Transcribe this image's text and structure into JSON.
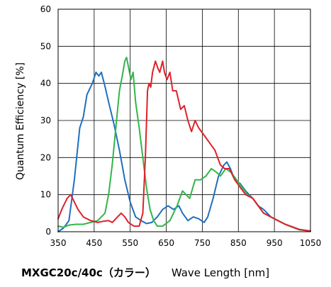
{
  "chart_data": {
    "type": "line",
    "ylabel": "Quantum Efficiency [%]",
    "xlabel": "Wave Length [nm]",
    "model_label": "MXGC20c/40c（カラー）",
    "xlim": [
      350,
      1050
    ],
    "ylim": [
      0,
      60
    ],
    "x_ticks": [
      350,
      450,
      550,
      650,
      750,
      850,
      950,
      1050
    ],
    "y_ticks": [
      0,
      10,
      20,
      30,
      40,
      50,
      60
    ],
    "grid": true,
    "series": [
      {
        "color": "#1f6fbf",
        "points": [
          [
            350,
            0
          ],
          [
            365,
            1
          ],
          [
            380,
            3
          ],
          [
            395,
            14
          ],
          [
            410,
            28
          ],
          [
            420,
            31
          ],
          [
            430,
            37
          ],
          [
            445,
            40
          ],
          [
            455,
            43
          ],
          [
            463,
            42
          ],
          [
            470,
            43
          ],
          [
            478,
            40
          ],
          [
            490,
            35
          ],
          [
            505,
            29
          ],
          [
            520,
            22
          ],
          [
            535,
            14
          ],
          [
            550,
            8
          ],
          [
            565,
            4
          ],
          [
            580,
            3
          ],
          [
            595,
            2.2
          ],
          [
            610,
            2.5
          ],
          [
            625,
            4
          ],
          [
            640,
            6
          ],
          [
            655,
            7
          ],
          [
            670,
            6
          ],
          [
            685,
            7
          ],
          [
            695,
            5
          ],
          [
            710,
            3
          ],
          [
            725,
            4
          ],
          [
            740,
            3.5
          ],
          [
            755,
            2.5
          ],
          [
            765,
            4
          ],
          [
            780,
            9
          ],
          [
            795,
            15
          ],
          [
            810,
            18
          ],
          [
            818,
            18.8
          ],
          [
            828,
            17
          ],
          [
            840,
            14
          ],
          [
            855,
            13
          ],
          [
            870,
            11
          ],
          [
            890,
            9
          ],
          [
            905,
            7
          ],
          [
            920,
            6
          ],
          [
            940,
            4
          ],
          [
            960,
            3
          ],
          [
            980,
            2
          ],
          [
            1000,
            1.3
          ],
          [
            1020,
            0.6
          ],
          [
            1050,
            0.2
          ]
        ]
      },
      {
        "color": "#33b54a",
        "points": [
          [
            350,
            1.5
          ],
          [
            365,
            1.2
          ],
          [
            380,
            1.8
          ],
          [
            400,
            2
          ],
          [
            420,
            2
          ],
          [
            440,
            2.5
          ],
          [
            460,
            3
          ],
          [
            480,
            5
          ],
          [
            490,
            10
          ],
          [
            500,
            18
          ],
          [
            510,
            28
          ],
          [
            520,
            38
          ],
          [
            528,
            42
          ],
          [
            535,
            46
          ],
          [
            540,
            47
          ],
          [
            546,
            44
          ],
          [
            552,
            41
          ],
          [
            558,
            43
          ],
          [
            565,
            35
          ],
          [
            575,
            28
          ],
          [
            585,
            20
          ],
          [
            595,
            12
          ],
          [
            605,
            6
          ],
          [
            615,
            3
          ],
          [
            625,
            1.5
          ],
          [
            640,
            1.5
          ],
          [
            660,
            3
          ],
          [
            680,
            7
          ],
          [
            695,
            11
          ],
          [
            705,
            10
          ],
          [
            715,
            9
          ],
          [
            730,
            14
          ],
          [
            745,
            14
          ],
          [
            760,
            15
          ],
          [
            775,
            17
          ],
          [
            790,
            16
          ],
          [
            800,
            15
          ],
          [
            815,
            17
          ],
          [
            830,
            16
          ],
          [
            845,
            14
          ],
          [
            860,
            12
          ],
          [
            875,
            10
          ],
          [
            890,
            9
          ],
          [
            905,
            7
          ],
          [
            920,
            5
          ],
          [
            940,
            4
          ],
          [
            960,
            3
          ],
          [
            980,
            2
          ],
          [
            1000,
            1.2
          ],
          [
            1020,
            0.5
          ],
          [
            1050,
            0.2
          ]
        ]
      },
      {
        "color": "#e0202a",
        "points": [
          [
            350,
            3.5
          ],
          [
            360,
            6
          ],
          [
            375,
            9
          ],
          [
            385,
            10
          ],
          [
            395,
            8
          ],
          [
            405,
            6
          ],
          [
            420,
            4
          ],
          [
            440,
            3
          ],
          [
            460,
            2.5
          ],
          [
            475,
            2.8
          ],
          [
            490,
            3
          ],
          [
            500,
            2.5
          ],
          [
            515,
            4
          ],
          [
            525,
            5
          ],
          [
            535,
            4
          ],
          [
            545,
            2.5
          ],
          [
            560,
            1.5
          ],
          [
            575,
            1.5
          ],
          [
            585,
            5
          ],
          [
            592,
            20
          ],
          [
            598,
            38
          ],
          [
            602,
            40
          ],
          [
            607,
            39
          ],
          [
            612,
            43
          ],
          [
            620,
            46
          ],
          [
            627,
            44
          ],
          [
            632,
            43
          ],
          [
            640,
            46
          ],
          [
            645,
            43
          ],
          [
            652,
            41
          ],
          [
            660,
            43
          ],
          [
            668,
            38
          ],
          [
            678,
            38
          ],
          [
            690,
            33
          ],
          [
            700,
            34
          ],
          [
            710,
            30
          ],
          [
            720,
            27
          ],
          [
            730,
            30
          ],
          [
            740,
            28
          ],
          [
            755,
            26
          ],
          [
            770,
            24
          ],
          [
            785,
            22
          ],
          [
            800,
            18
          ],
          [
            812,
            17
          ],
          [
            825,
            17
          ],
          [
            840,
            14
          ],
          [
            855,
            12
          ],
          [
            870,
            10
          ],
          [
            890,
            9
          ],
          [
            905,
            7
          ],
          [
            920,
            5
          ],
          [
            940,
            4
          ],
          [
            960,
            3
          ],
          [
            980,
            2
          ],
          [
            1000,
            1.3
          ],
          [
            1020,
            0.6
          ],
          [
            1050,
            0.2
          ]
        ]
      }
    ]
  }
}
